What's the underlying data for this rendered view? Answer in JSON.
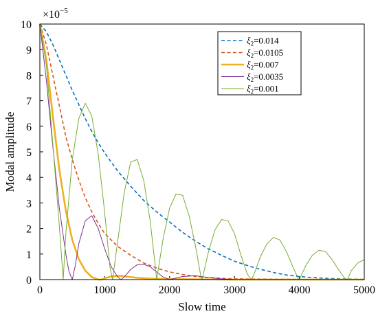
{
  "chart_data": {
    "type": "line",
    "xlabel": "Slow time",
    "ylabel": "Modal amplitude",
    "y_multiplier": "×10",
    "y_multiplier_exponent": "−5",
    "xlim": [
      0,
      5000
    ],
    "ylim": [
      0,
      10
    ],
    "xticks": [
      0,
      1000,
      2000,
      3000,
      4000,
      5000
    ],
    "yticks": [
      0,
      1,
      2,
      3,
      4,
      5,
      6,
      7,
      8,
      9,
      10
    ],
    "grid": false,
    "legend_position": "top-right",
    "legend_symbol": "ξ",
    "legend_subscript": "2",
    "series": [
      {
        "name": "ξ2=0.014",
        "label_value": "=0.014",
        "color": "#0072bd",
        "style": "dashed",
        "x": [
          0,
          100,
          200,
          300,
          400,
          500,
          600,
          700,
          800,
          900,
          1000,
          1200,
          1400,
          1600,
          1800,
          2000,
          2200,
          2400,
          2600,
          2800,
          3000,
          3200,
          3400,
          3600,
          3800,
          4000,
          4200,
          4400,
          4600,
          4800,
          5000
        ],
        "y": [
          10.0,
          9.7,
          9.2,
          8.6,
          8.0,
          7.4,
          6.85,
          6.3,
          5.8,
          5.35,
          4.95,
          4.25,
          3.65,
          3.1,
          2.65,
          2.25,
          1.85,
          1.5,
          1.2,
          0.95,
          0.72,
          0.55,
          0.4,
          0.28,
          0.18,
          0.12,
          0.08,
          0.05,
          0.03,
          0.02,
          0.01
        ]
      },
      {
        "name": "ξ2=0.0105",
        "label_value": "=0.0105",
        "color": "#d95319",
        "style": "dashed",
        "x": [
          0,
          100,
          200,
          300,
          400,
          500,
          600,
          700,
          800,
          900,
          1000,
          1200,
          1400,
          1600,
          1800,
          2000,
          2200,
          2400,
          2600,
          2800,
          3000,
          3500,
          4000,
          4500,
          5000
        ],
        "y": [
          10.0,
          9.2,
          8.0,
          6.8,
          5.6,
          4.7,
          3.9,
          3.2,
          2.65,
          2.2,
          1.8,
          1.3,
          0.95,
          0.65,
          0.45,
          0.3,
          0.2,
          0.12,
          0.08,
          0.05,
          0.03,
          0.02,
          0.01,
          0.005,
          0.0
        ]
      },
      {
        "name": "ξ2=0.007",
        "label_value": "=0.007",
        "color": "#edb120",
        "style": "solid-thick",
        "x": [
          0,
          100,
          200,
          300,
          400,
          500,
          600,
          700,
          800,
          900,
          950,
          1000,
          1100,
          1200,
          1300,
          1400,
          1500,
          1700,
          2000,
          2500,
          3000,
          4000,
          5000
        ],
        "y": [
          10.0,
          8.6,
          6.4,
          4.3,
          2.7,
          1.55,
          0.8,
          0.35,
          0.1,
          0.0,
          0.0,
          0.05,
          0.12,
          0.15,
          0.13,
          0.1,
          0.07,
          0.04,
          0.02,
          0.01,
          0.0,
          0.0,
          0.0
        ]
      },
      {
        "name": "ξ2=0.0035",
        "label_value": "=0.0035",
        "color": "#7e2f8e",
        "style": "solid",
        "x": [
          0,
          100,
          200,
          300,
          400,
          450,
          500,
          550,
          600,
          700,
          800,
          900,
          1000,
          1100,
          1200,
          1250,
          1300,
          1400,
          1500,
          1600,
          1700,
          1800,
          1900,
          2000,
          2200,
          2400,
          2600,
          2800,
          3000,
          4000,
          5000
        ],
        "y": [
          10.0,
          7.8,
          5.2,
          2.8,
          1.0,
          0.3,
          0.0,
          0.6,
          1.4,
          2.3,
          2.5,
          2.0,
          1.2,
          0.5,
          0.1,
          0.0,
          0.1,
          0.4,
          0.58,
          0.6,
          0.5,
          0.3,
          0.1,
          0.0,
          0.12,
          0.15,
          0.08,
          0.03,
          0.0,
          0.0,
          0.0
        ]
      },
      {
        "name": "ξ2=0.001",
        "label_value": "=0.001",
        "color": "#77ac30",
        "style": "solid",
        "x": [
          0,
          100,
          200,
          300,
          360,
          400,
          500,
          600,
          700,
          800,
          900,
          1000,
          1080,
          1120,
          1200,
          1300,
          1400,
          1500,
          1600,
          1700,
          1780,
          1800,
          1900,
          2000,
          2100,
          2200,
          2300,
          2400,
          2480,
          2500,
          2600,
          2700,
          2800,
          2900,
          3000,
          3100,
          3200,
          3260,
          3300,
          3400,
          3500,
          3600,
          3700,
          3800,
          3900,
          3980,
          4000,
          4100,
          4200,
          4300,
          4400,
          4500,
          4600,
          4700,
          4740,
          4800,
          4900,
          5000
        ],
        "y": [
          10.0,
          8.4,
          5.3,
          2.1,
          0.0,
          1.8,
          4.7,
          6.3,
          6.9,
          6.4,
          4.9,
          2.6,
          0.5,
          0.0,
          1.5,
          3.4,
          4.6,
          4.7,
          3.9,
          2.3,
          0.5,
          0.0,
          1.6,
          2.8,
          3.35,
          3.3,
          2.5,
          1.3,
          0.15,
          0.0,
          1.1,
          1.95,
          2.35,
          2.3,
          1.8,
          0.95,
          0.2,
          0.0,
          0.2,
          0.9,
          1.4,
          1.65,
          1.55,
          1.1,
          0.5,
          0.05,
          0.0,
          0.55,
          0.95,
          1.15,
          1.1,
          0.8,
          0.4,
          0.05,
          0.0,
          0.35,
          0.65,
          0.78
        ]
      }
    ]
  }
}
